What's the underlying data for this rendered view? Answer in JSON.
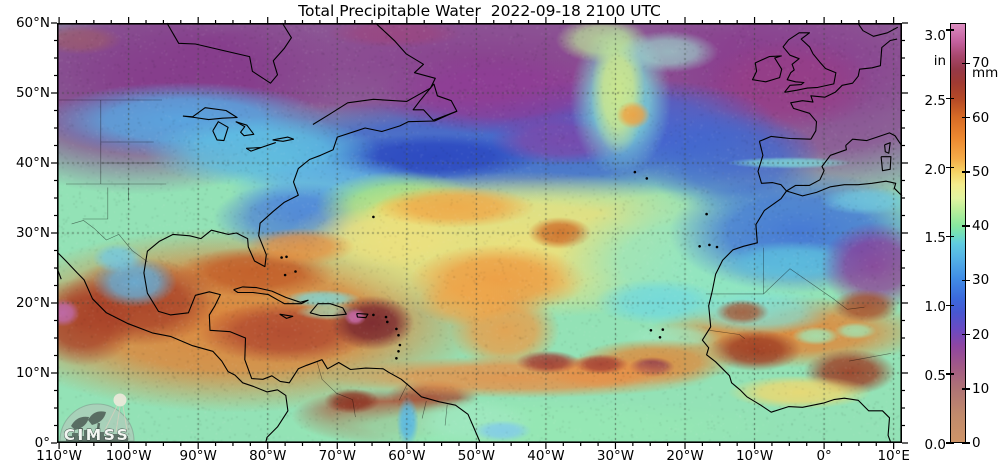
{
  "title": "Total Precipitable Water  2022-09-18 2100 UTC",
  "map": {
    "lat_labels": [
      "60°N",
      "50°N",
      "40°N",
      "30°N",
      "20°N",
      "10°N",
      "0°"
    ],
    "lon_labels": [
      "110°W",
      "100°W",
      "90°W",
      "80°W",
      "70°W",
      "60°W",
      "50°W",
      "40°W",
      "30°W",
      "20°W",
      "10°W",
      "0°",
      "10°E"
    ],
    "grid_color": "#3A463A",
    "border_color": "#000000",
    "base_color": "#93E2B6"
  },
  "colorbar": {
    "unit_left": "in",
    "unit_right": "mm",
    "ticks_in": [
      "3.0",
      "2.5",
      "2.0",
      "1.5",
      "1.0",
      "0.5",
      "0.0"
    ],
    "ticks_in_values": [
      3.0,
      2.5,
      2.0,
      1.5,
      1.0,
      0.5,
      0.0
    ],
    "ticks_mm": [
      "70",
      "60",
      "50",
      "40",
      "30",
      "20",
      "10",
      "0"
    ],
    "ticks_mm_values": [
      70,
      60,
      50,
      40,
      30,
      20,
      10,
      0
    ],
    "max_in": 3.05,
    "stops": [
      [
        0.0,
        "#CE9468"
      ],
      [
        0.2,
        "#C08A6C"
      ],
      [
        0.4,
        "#AE7276"
      ],
      [
        0.55,
        "#A25A86"
      ],
      [
        0.7,
        "#8F46A2"
      ],
      [
        0.82,
        "#6B4AC2"
      ],
      [
        0.95,
        "#4758D2"
      ],
      [
        1.05,
        "#3B6ADC"
      ],
      [
        1.2,
        "#418EE6"
      ],
      [
        1.35,
        "#55B4E6"
      ],
      [
        1.45,
        "#60CCE0"
      ],
      [
        1.52,
        "#74DFB9"
      ],
      [
        1.58,
        "#88E89E"
      ],
      [
        1.68,
        "#B4EE9A"
      ],
      [
        1.78,
        "#E2F4A0"
      ],
      [
        1.88,
        "#F4EC8C"
      ],
      [
        1.97,
        "#F6D465"
      ],
      [
        2.07,
        "#F4AA48"
      ],
      [
        2.22,
        "#EC8830"
      ],
      [
        2.37,
        "#D76B26"
      ],
      [
        2.5,
        "#B54A26"
      ],
      [
        2.62,
        "#A03A32"
      ],
      [
        2.72,
        "#963948"
      ],
      [
        2.82,
        "#A8486E"
      ],
      [
        2.92,
        "#C4609E"
      ],
      [
        3.05,
        "#DB8CC0"
      ]
    ]
  },
  "logo": {
    "text": "CIMSS"
  },
  "field_regions": [
    [
      0.498,
      0.088,
      0.6,
      0.22,
      "#8A3A8E",
      0.95
    ],
    [
      0.098,
      0.148,
      0.24,
      0.26,
      "#85368A",
      0.9
    ],
    [
      0.915,
      0.124,
      0.24,
      0.32,
      "#8A3A8E",
      0.9
    ],
    [
      0.867,
      0.148,
      0.1,
      0.11,
      "#993D86",
      0.8
    ],
    [
      0.4,
      0.024,
      0.08,
      0.035,
      "#A34276",
      0.55
    ],
    [
      0.027,
      0.04,
      0.05,
      0.035,
      "#A8625A",
      0.5
    ],
    [
      0.211,
      0.707,
      0.3,
      0.22,
      "#E08438",
      0.96
    ],
    [
      0.235,
      0.593,
      0.095,
      0.06,
      "#C25C28",
      0.9
    ],
    [
      0.271,
      0.736,
      0.105,
      0.075,
      "#B04830",
      0.9
    ],
    [
      0.098,
      0.664,
      0.095,
      0.105,
      "#A84028",
      0.9
    ],
    [
      0.03,
      0.712,
      0.065,
      0.105,
      "#A84028",
      0.9
    ],
    [
      0.382,
      0.936,
      0.105,
      0.065,
      "#B04830",
      0.9
    ],
    [
      0.444,
      0.89,
      0.055,
      0.042,
      "#A84830",
      0.85
    ],
    [
      0.867,
      0.736,
      0.165,
      0.085,
      "#E08A3C",
      0.95
    ],
    [
      0.524,
      0.302,
      0.38,
      0.125,
      "#3A5FD0",
      0.9
    ],
    [
      0.444,
      0.319,
      0.13,
      0.055,
      "#2B46C0",
      0.9
    ],
    [
      0.672,
      0.236,
      0.18,
      0.105,
      "#4560D0",
      0.85
    ],
    [
      0.8,
      0.331,
      0.105,
      0.125,
      "#4066D0",
      0.8
    ],
    [
      0.524,
      0.171,
      0.15,
      0.095,
      "#8F3A96",
      0.85
    ],
    [
      0.598,
      0.279,
      0.085,
      0.06,
      "#8C42A0",
      0.7
    ],
    [
      0.151,
      0.231,
      0.17,
      0.09,
      "#55AEE8",
      0.9
    ],
    [
      0.243,
      0.307,
      0.14,
      0.085,
      "#5FC4E6",
      0.85
    ],
    [
      0.325,
      0.402,
      0.12,
      0.09,
      "#60B4E8",
      0.8
    ],
    [
      0.285,
      0.464,
      0.1,
      0.085,
      "#4A7AD8",
      0.8
    ],
    [
      0.406,
      0.433,
      0.1,
      0.08,
      "#A8E67E",
      0.9
    ],
    [
      0.409,
      0.45,
      0.045,
      0.035,
      "#EED95C",
      0.8
    ],
    [
      0.092,
      0.617,
      0.05,
      0.06,
      "#5FB8E8",
      0.85
    ],
    [
      0.072,
      0.56,
      0.03,
      0.035,
      "#6FC8E8",
      0.8
    ],
    [
      0.548,
      0.529,
      0.28,
      0.175,
      "#EFE07A",
      0.95
    ],
    [
      0.394,
      0.51,
      0.095,
      0.075,
      "#EDE07E",
      0.9
    ],
    [
      0.471,
      0.438,
      0.095,
      0.05,
      "#F0A848",
      0.9
    ],
    [
      0.522,
      0.612,
      0.105,
      0.085,
      "#EF9A40",
      0.9
    ],
    [
      0.595,
      0.5,
      0.038,
      0.038,
      "#CE6E2A",
      0.9
    ],
    [
      0.53,
      0.731,
      0.065,
      0.095,
      "#EF9A44",
      0.85
    ],
    [
      0.486,
      0.664,
      0.06,
      0.06,
      "#F0A64A",
      0.8
    ],
    [
      0.667,
      0.183,
      0.06,
      0.18,
      "#7FD8D4",
      0.9
    ],
    [
      0.664,
      0.164,
      0.032,
      0.15,
      "#D8EC84",
      0.85
    ],
    [
      0.682,
      0.219,
      0.02,
      0.033,
      "#F0A040",
      0.9
    ],
    [
      0.645,
      0.04,
      0.055,
      0.055,
      "#BCE69A",
      0.8
    ],
    [
      0.723,
      0.069,
      0.06,
      0.05,
      "#9FE0D0",
      0.7
    ],
    [
      0.761,
      0.569,
      0.17,
      0.165,
      "#8FE6C4",
      0.9
    ],
    [
      0.711,
      0.664,
      0.075,
      0.055,
      "#6FD8E0",
      0.8
    ],
    [
      0.834,
      0.688,
      0.085,
      0.055,
      "#7FE0D8",
      0.8
    ],
    [
      0.548,
      0.962,
      0.32,
      0.07,
      "#96E8B4",
      0.95
    ],
    [
      0.491,
      0.948,
      0.075,
      0.055,
      "#9FE8C0",
      0.9
    ],
    [
      0.728,
      0.748,
      0.06,
      0.03,
      "#9FE8C0",
      0.7
    ],
    [
      0.879,
      0.498,
      0.155,
      0.145,
      "#3F6FD8",
      0.9
    ],
    [
      0.87,
      0.569,
      0.09,
      0.05,
      "#5FC8E0",
      0.8
    ],
    [
      0.969,
      0.579,
      0.065,
      0.105,
      "#8C3A96",
      0.85
    ],
    [
      0.827,
      0.779,
      0.055,
      0.05,
      "#9E3A22",
      0.9
    ],
    [
      0.938,
      0.831,
      0.055,
      0.055,
      "#9E3A22",
      0.9
    ],
    [
      0.957,
      0.674,
      0.04,
      0.04,
      "#A84A28",
      0.85
    ],
    [
      0.811,
      0.688,
      0.032,
      0.03,
      "#A84A28",
      0.8
    ],
    [
      0.879,
      0.879,
      0.085,
      0.04,
      "#EFD870",
      0.9
    ],
    [
      0.898,
      0.745,
      0.028,
      0.022,
      "#9FE8B8",
      0.85
    ],
    [
      0.945,
      0.733,
      0.025,
      0.02,
      "#9FE8B8",
      0.8
    ],
    [
      0.708,
      0.807,
      0.095,
      0.055,
      "#E08A3C",
      0.9
    ],
    [
      0.643,
      0.831,
      0.07,
      0.04,
      "#E39048",
      0.85
    ],
    [
      0.704,
      0.819,
      0.027,
      0.024,
      "#8B3550",
      0.85
    ],
    [
      0.548,
      0.843,
      0.23,
      0.05,
      "#E89048",
      0.9
    ],
    [
      0.581,
      0.807,
      0.038,
      0.027,
      "#A03C34",
      0.9
    ],
    [
      0.644,
      0.812,
      0.032,
      0.024,
      "#A03C34",
      0.85
    ],
    [
      0.288,
      0.533,
      0.065,
      0.045,
      "#E89040",
      0.85
    ],
    [
      0.314,
      0.657,
      0.045,
      0.022,
      "#7FD8D8",
      0.85
    ],
    [
      0.323,
      0.688,
      0.04,
      0.02,
      "#9FE0C0",
      0.7
    ],
    [
      0.349,
      0.9,
      0.033,
      0.03,
      "#8B3020",
      0.85
    ],
    [
      0.415,
      0.95,
      0.013,
      0.06,
      "#58B8E8",
      0.9
    ],
    [
      0.527,
      0.971,
      0.035,
      0.025,
      "#7FC8F0",
      0.8
    ],
    [
      0.007,
      0.69,
      0.02,
      0.033,
      "#C06CB0",
      0.9
    ],
    [
      0.373,
      0.714,
      0.05,
      0.065,
      "#7A2830",
      0.95
    ],
    [
      0.353,
      0.7,
      0.013,
      0.02,
      "#C86CA8",
      0.95
    ],
    [
      0.867,
      0.333,
      0.075,
      0.014,
      "#7FD8D8",
      0.85
    ],
    [
      0.957,
      0.424,
      0.055,
      0.033,
      "#6FC8E0",
      0.8
    ]
  ]
}
